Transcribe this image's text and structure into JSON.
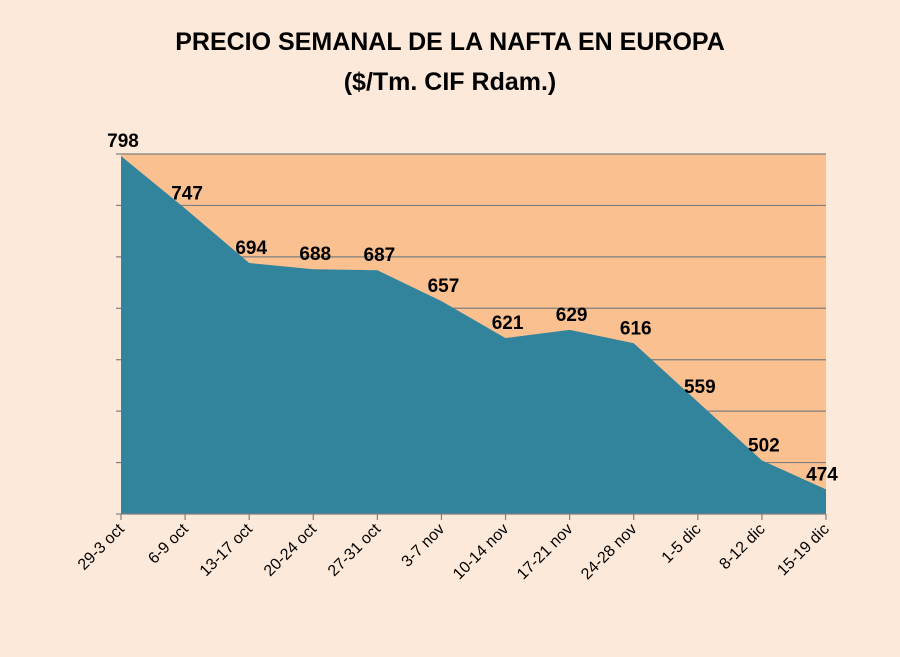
{
  "chart_data": {
    "type": "area",
    "title": "PRECIO SEMANAL DE LA NAFTA EN EUROPA",
    "subtitle": "($/Tm. CIF Rdam.)",
    "categories": [
      "29-3 oct",
      "6-9 oct",
      "13-17 oct",
      "20-24 oct",
      "27-31 oct",
      "3-7 nov",
      "10-14 nov",
      "17-21 nov",
      "24-28 nov",
      "1-5 dic",
      "8-12 dic",
      "15-19 dic"
    ],
    "values": [
      798,
      747,
      694,
      688,
      687,
      657,
      621,
      629,
      616,
      559,
      502,
      474
    ],
    "ylim": [
      450,
      800
    ],
    "grid": true,
    "area_color": "#31849b",
    "plot_bg_color": "#fac090",
    "background_color": "#fde9d9"
  }
}
